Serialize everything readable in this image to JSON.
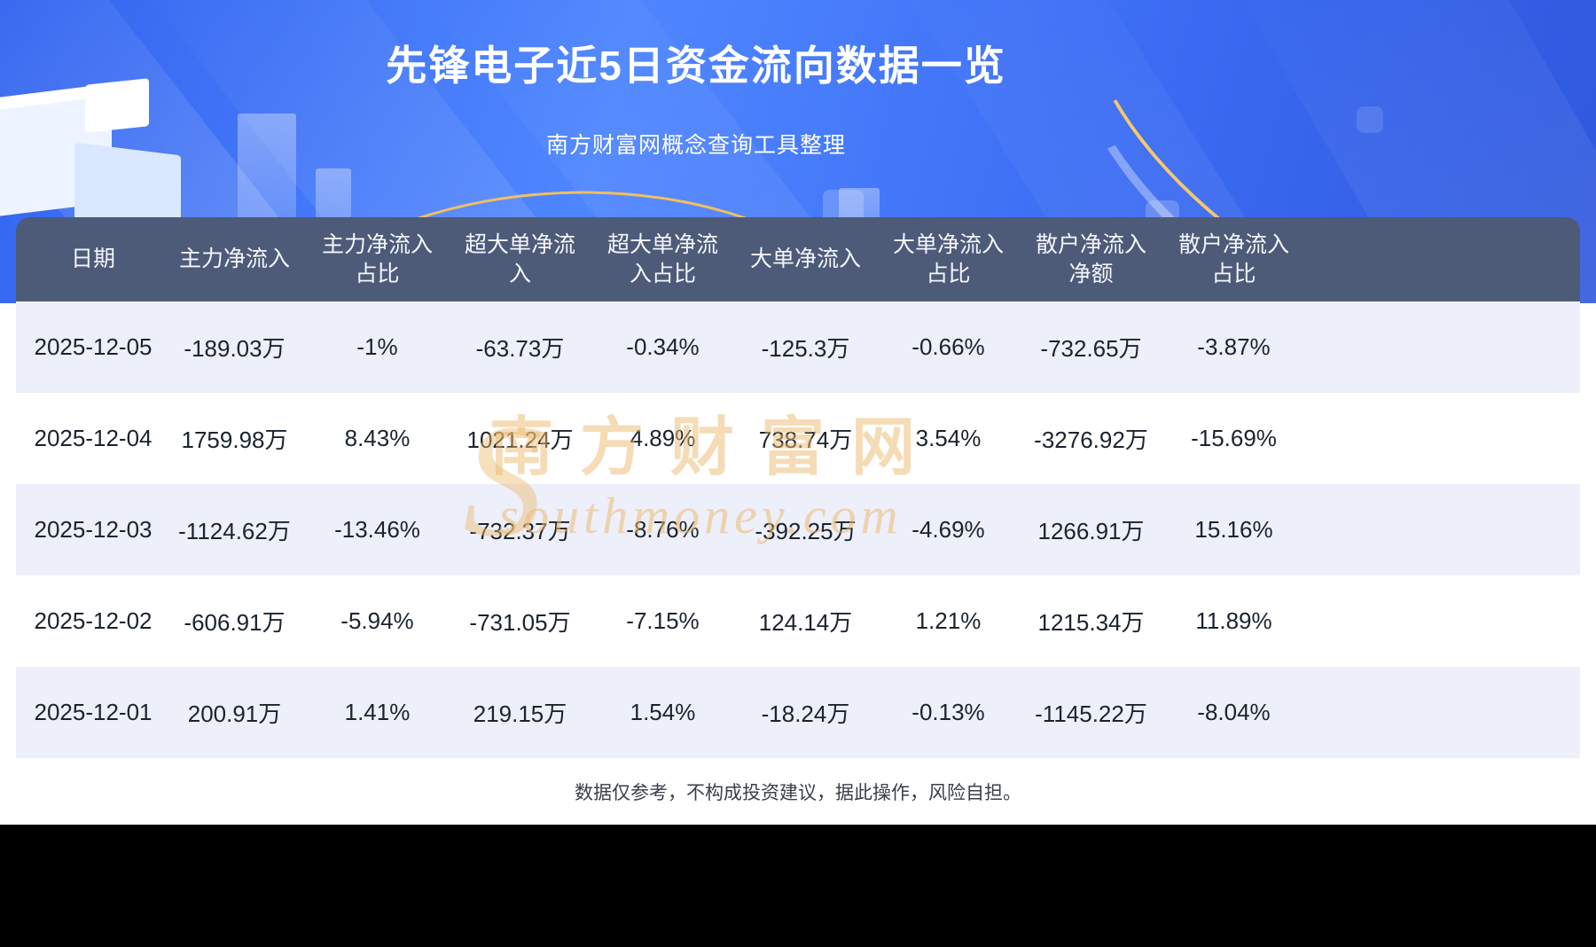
{
  "page": {
    "title": "先锋电子近5日资金流向数据一览",
    "subtitle": "南方财富网概念查询工具整理",
    "disclaimer": "数据仅参考，不构成投资建议，据此操作，风险自担。"
  },
  "watermark": {
    "logo_letter": "S",
    "text": "南方财富网",
    "domain": "southmoney.com"
  },
  "colors": {
    "hero_blue": "#3b6cf3",
    "header_bg": "#4d5a78",
    "row_alt_bg": "#edeffa",
    "row_bg": "#ffffff",
    "gold_accent": "#f2bf62",
    "watermark_tan": "#ecba6e",
    "bottom_bar": "#000000"
  },
  "chart_data": {
    "type": "table",
    "title": "先锋电子近5日资金流向数据一览",
    "columns": [
      "日期",
      "主力净流入",
      "主力净流入\n占比",
      "超大单净流\n入",
      "超大单净流\n入占比",
      "大单净流入",
      "大单净流入\n占比",
      "散户净流入\n净额",
      "散户净流入\n占比"
    ],
    "rows": [
      [
        "2025-12-05",
        "-189.03万",
        "-1%",
        "-63.73万",
        "-0.34%",
        "-125.3万",
        "-0.66%",
        "-732.65万",
        "-3.87%"
      ],
      [
        "2025-12-04",
        "1759.98万",
        "8.43%",
        "1021.24万",
        "4.89%",
        "738.74万",
        "3.54%",
        "-3276.92万",
        "-15.69%"
      ],
      [
        "2025-12-03",
        "-1124.62万",
        "-13.46%",
        "-732.37万",
        "-8.76%",
        "-392.25万",
        "-4.69%",
        "1266.91万",
        "15.16%"
      ],
      [
        "2025-12-02",
        "-606.91万",
        "-5.94%",
        "-731.05万",
        "-7.15%",
        "124.14万",
        "1.21%",
        "1215.34万",
        "11.89%"
      ],
      [
        "2025-12-01",
        "200.91万",
        "1.41%",
        "219.15万",
        "1.54%",
        "-18.24万",
        "-0.13%",
        "-1145.22万",
        "-8.04%"
      ]
    ]
  }
}
